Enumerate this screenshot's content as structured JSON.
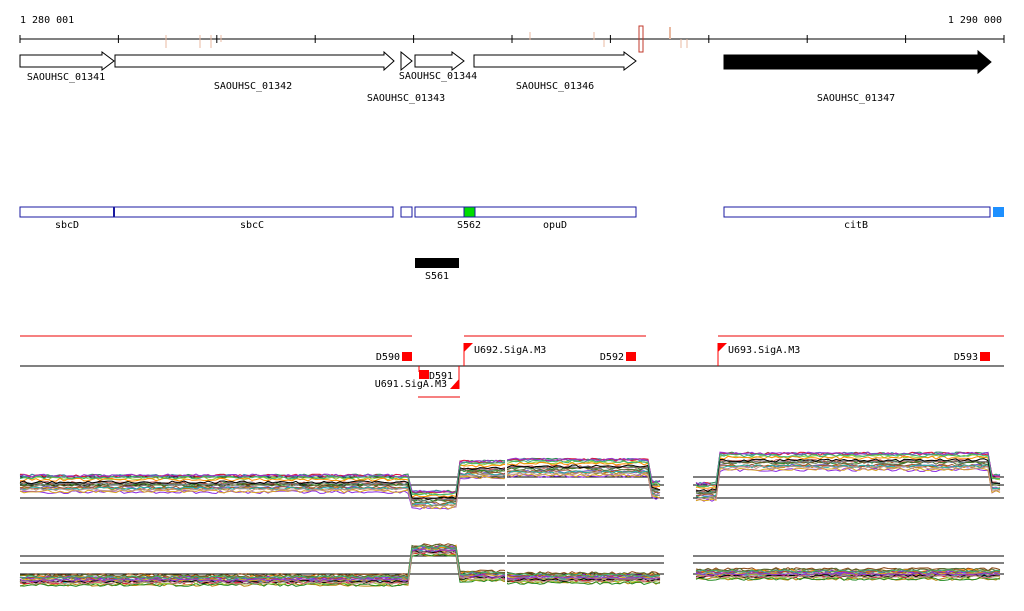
{
  "coords": {
    "start": "1 280 001",
    "end": "1 290 000"
  },
  "genes": [
    {
      "label": "SAOUHSC_01341",
      "strand": "+",
      "filled": false
    },
    {
      "label": "SAOUHSC_01342",
      "strand": "+",
      "filled": false
    },
    {
      "label": "SAOUHSC_01343",
      "strand": "+",
      "filled": false
    },
    {
      "label": "SAOUHSC_01344",
      "strand": "+",
      "filled": false
    },
    {
      "label": "SAOUHSC_01346",
      "strand": "+",
      "filled": false
    },
    {
      "label": "SAOUHSC_01347",
      "strand": "+",
      "filled": true
    }
  ],
  "operons": [
    {
      "label": "sbcD"
    },
    {
      "label": "sbcC"
    },
    {
      "label": ""
    },
    {
      "label": "S562",
      "color": "#00dd00"
    },
    {
      "label": "opuD"
    },
    {
      "label": "citB"
    },
    {
      "label": "",
      "color": "#1e90ff"
    }
  ],
  "srnas": [
    {
      "label": "S561"
    }
  ],
  "sites": [
    {
      "label": "D590"
    },
    {
      "label": "D591"
    },
    {
      "label": "U691.SigA.M3"
    },
    {
      "label": "U692.SigA.M3"
    },
    {
      "label": "D592"
    },
    {
      "label": "U693.SigA.M3"
    },
    {
      "label": "D593"
    }
  ],
  "colors": {
    "site_marker": "#ff0000",
    "gene_fill": "#000000",
    "segment_line": "#ee0000"
  }
}
